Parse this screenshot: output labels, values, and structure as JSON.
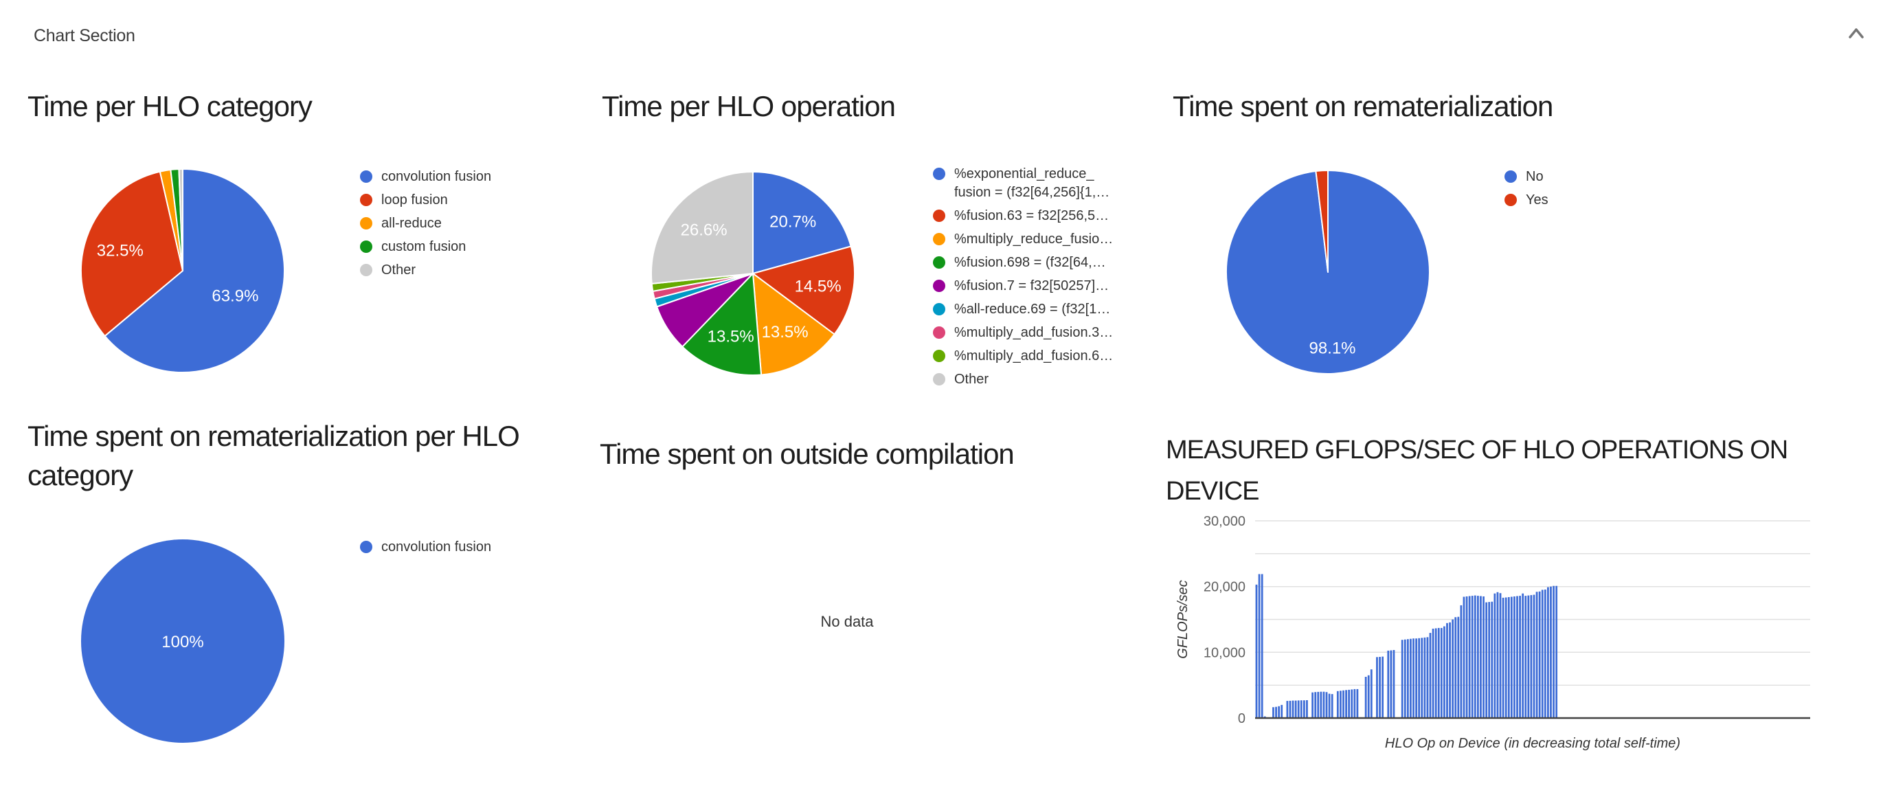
{
  "header": {
    "title": "Chart Section",
    "collapse_icon": "chevron-up-icon"
  },
  "palette": {
    "blue": "#3D6CD6",
    "red": "#DC3912",
    "orange": "#FF9900",
    "green": "#109618",
    "purple": "#990099",
    "cyan": "#0099C6",
    "pink": "#DD4477",
    "lightgreen": "#66AA00",
    "gray": "#CCCCCC"
  },
  "chart_data": [
    {
      "id": "time_per_hlo_category",
      "type": "pie",
      "title": "Time per HLO category",
      "legend_position": "right",
      "slices": [
        {
          "label": "convolution fusion",
          "value": 63.9,
          "color": "blue",
          "pct_label": "63.9%"
        },
        {
          "label": "loop fusion",
          "value": 32.5,
          "color": "red",
          "pct_label": "32.5%"
        },
        {
          "label": "all-reduce",
          "value": 1.7,
          "color": "orange"
        },
        {
          "label": "custom fusion",
          "value": 1.3,
          "color": "green"
        },
        {
          "label": "Other",
          "value": 0.6,
          "color": "gray"
        }
      ]
    },
    {
      "id": "time_per_hlo_operation",
      "type": "pie",
      "title": "Time per HLO operation",
      "legend_position": "right",
      "slices": [
        {
          "label": "%exponential_reduce_fusion = (f32[64,256]{1,…",
          "legend_lines": [
            "%exponential_reduce_",
            "fusion = (f32[64,256]{1,…"
          ],
          "value": 20.7,
          "color": "blue",
          "pct_label": "20.7%"
        },
        {
          "label": "%fusion.63 = f32[256,5…",
          "value": 14.5,
          "color": "red",
          "pct_label": "14.5%"
        },
        {
          "label": "%multiply_reduce_fusio…",
          "value": 13.5,
          "color": "orange",
          "pct_label": "13.5%"
        },
        {
          "label": "%fusion.698 = (f32[64,…",
          "value": 13.5,
          "color": "green",
          "pct_label": "13.5%"
        },
        {
          "label": "%fusion.7 = f32[50257]…",
          "value": 7.5,
          "color": "purple"
        },
        {
          "label": "%all-reduce.69 = (f32[1…",
          "value": 1.3,
          "color": "cyan"
        },
        {
          "label": "%multiply_add_fusion.3…",
          "value": 1.2,
          "color": "pink"
        },
        {
          "label": "%multiply_add_fusion.6…",
          "value": 1.2,
          "color": "lightgreen"
        },
        {
          "label": "Other",
          "value": 26.6,
          "color": "gray",
          "pct_label": "26.6%"
        }
      ]
    },
    {
      "id": "time_spent_on_rematerialization",
      "type": "pie",
      "title": "Time spent on rematerialization",
      "legend_position": "right",
      "slices": [
        {
          "label": "No",
          "value": 98.1,
          "color": "blue",
          "pct_label": "98.1%"
        },
        {
          "label": "Yes",
          "value": 1.9,
          "color": "red"
        }
      ]
    },
    {
      "id": "time_spent_on_rematerialization_per_hlo_category",
      "type": "pie",
      "title": "Time spent on rematerialization per HLO category",
      "title_lines": [
        "Time spent on rematerialization per HLO",
        "category"
      ],
      "legend_position": "right",
      "slices": [
        {
          "label": "convolution fusion",
          "value": 100,
          "color": "blue",
          "pct_label": "100%"
        }
      ]
    },
    {
      "id": "time_spent_on_outside_compilation",
      "type": "pie",
      "title": "Time spent on outside compilation",
      "no_data": "No data",
      "slices": []
    },
    {
      "id": "measured_gflops_per_sec",
      "type": "bar",
      "title": "MEASURED GFLOPS/SEC OF HLO OPERATIONS ON DEVICE",
      "title_lines": [
        "MEASURED GFLOPS/SEC OF HLO OPERATIONS ON",
        "DEVICE"
      ],
      "xlabel": "HLO Op on Device (in decreasing total self-time)",
      "ylabel": "GFLOPs/sec",
      "ylim": [
        0,
        30000
      ],
      "yticks": [
        0,
        10000,
        20000,
        30000
      ],
      "minor_grid_step": 5000,
      "grid": true,
      "bar_color": "blue",
      "total_slots": 198,
      "values": [
        20300,
        21900,
        21900,
        250,
        0,
        0,
        1650,
        1700,
        1800,
        2000,
        0,
        2600,
        2620,
        2650,
        2650,
        2680,
        2700,
        2700,
        2720,
        0,
        3900,
        3950,
        3980,
        4000,
        4000,
        3950,
        3700,
        3650,
        0,
        4100,
        4150,
        4200,
        4250,
        4300,
        4350,
        4400,
        4400,
        0,
        0,
        6270,
        6500,
        7400,
        0,
        9270,
        9300,
        9350,
        0,
        10250,
        10300,
        10350,
        0,
        0,
        11900,
        11950,
        12000,
        12050,
        12100,
        12100,
        12150,
        12200,
        12250,
        12300,
        12950,
        13600,
        13650,
        13700,
        13700,
        13950,
        14450,
        14550,
        15000,
        15350,
        15400,
        17150,
        18450,
        18500,
        18550,
        18600,
        18650,
        18600,
        18550,
        18500,
        17600,
        17650,
        17700,
        18950,
        19150,
        19000,
        18300,
        18350,
        18400,
        18450,
        18500,
        18550,
        18600,
        18950,
        18600,
        18650,
        18700,
        18750,
        19200,
        19250,
        19500,
        19550,
        19900,
        20000,
        20100,
        20100
      ]
    }
  ]
}
